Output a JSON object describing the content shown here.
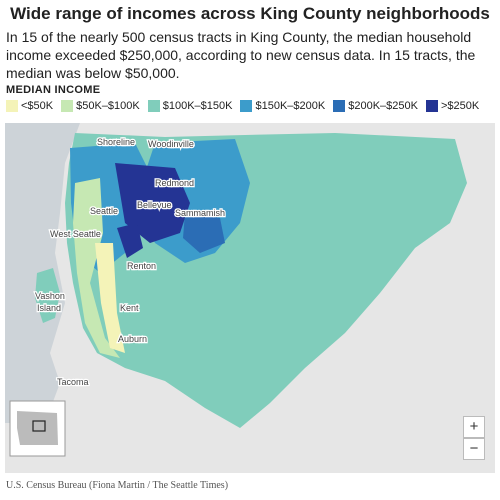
{
  "header": {
    "title": "Wide range of incomes across King County neighborhoods",
    "subtitle": "In 15 of the nearly 500 census tracts in King County, the median household income exceeded $250,000, according to new census data. In 15 tracts, the median was below $50,000."
  },
  "legend": {
    "title": "MEDIAN INCOME",
    "items": [
      {
        "label": "<$50K",
        "color": "#f4f3b8"
      },
      {
        "label": "$50K–$100K",
        "color": "#c6e8b3"
      },
      {
        "label": "$100K–$150K",
        "color": "#80cdbb"
      },
      {
        "label": "$150K–$200K",
        "color": "#3c9ccb"
      },
      {
        "label": "$200K–$250K",
        "color": "#2b6db5"
      },
      {
        "label": ">$250K",
        "color": "#243494"
      }
    ]
  },
  "map": {
    "places": [
      {
        "label": "Shoreline"
      },
      {
        "label": "Woodinville"
      },
      {
        "label": "Redmond"
      },
      {
        "label": "Seattle"
      },
      {
        "label": "Bellevue"
      },
      {
        "label": "Sammamish"
      },
      {
        "label": "West Seattle"
      },
      {
        "label": "Renton"
      },
      {
        "label": "Vashon"
      },
      {
        "label": "Island"
      },
      {
        "label": "Kent"
      },
      {
        "label": "Auburn"
      },
      {
        "label": "Tacoma"
      }
    ],
    "zoom": {
      "in": "+",
      "out": "−"
    }
  },
  "credit": "U.S. Census Bureau (Fiona Martin / The Seattle Times)"
}
